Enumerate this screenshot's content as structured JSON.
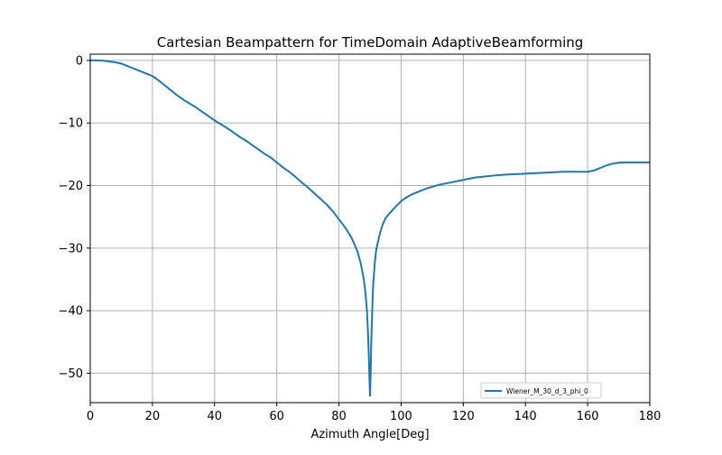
{
  "chart_data": {
    "type": "line",
    "title": "Cartesian Beampattern for TimeDomain AdaptiveBeamforming",
    "xlabel": "Azimuth Angle[Deg]",
    "ylabel": "",
    "xlim": [
      0,
      180
    ],
    "ylim": [
      -54.7,
      1.0
    ],
    "xticks": [
      0,
      20,
      40,
      60,
      80,
      100,
      120,
      140,
      160,
      180
    ],
    "yticks": [
      0,
      -10,
      -20,
      -30,
      -40,
      -50
    ],
    "grid": true,
    "legend_position": "lower-right",
    "colors": {
      "series": "#1f77b4",
      "grid": "#b0b0b0"
    },
    "series": [
      {
        "name": "Wiener_M_30_d_3_phi_0",
        "x": [
          0,
          2,
          4,
          6,
          8,
          10,
          12,
          14,
          16,
          18,
          20,
          22,
          24,
          26,
          28,
          30,
          32,
          34,
          36,
          38,
          40,
          42,
          44,
          46,
          48,
          50,
          52,
          54,
          56,
          58,
          60,
          62,
          64,
          66,
          68,
          70,
          72,
          74,
          76,
          78,
          80,
          82,
          84,
          85,
          86,
          87,
          88,
          88.5,
          89,
          89.3,
          89.6,
          89.8,
          90,
          90.2,
          90.4,
          90.7,
          91,
          91.5,
          92,
          93,
          94,
          95,
          96,
          98,
          100,
          102,
          104,
          106,
          108,
          110,
          112,
          114,
          116,
          118,
          120,
          122,
          124,
          126,
          128,
          130,
          132,
          134,
          136,
          138,
          140,
          142,
          144,
          146,
          148,
          150,
          152,
          154,
          156,
          158,
          160,
          162,
          164,
          166,
          168,
          170,
          172,
          174,
          176,
          178,
          180
        ],
        "y": [
          0,
          0,
          -0.05,
          -0.15,
          -0.3,
          -0.5,
          -0.9,
          -1.3,
          -1.7,
          -2.1,
          -2.5,
          -3.2,
          -4.0,
          -4.8,
          -5.6,
          -6.3,
          -6.9,
          -7.5,
          -8.2,
          -8.9,
          -9.6,
          -10.2,
          -10.8,
          -11.5,
          -12.2,
          -12.8,
          -13.5,
          -14.2,
          -14.9,
          -15.5,
          -16.3,
          -17.1,
          -17.8,
          -18.6,
          -19.5,
          -20.3,
          -21.2,
          -22.1,
          -23.0,
          -24.1,
          -25.4,
          -26.7,
          -28.3,
          -29.4,
          -30.6,
          -32.4,
          -35.0,
          -37.0,
          -40.0,
          -43.0,
          -47.0,
          -50.5,
          -53.6,
          -50.0,
          -45.0,
          -40.0,
          -36.0,
          -32.5,
          -30.2,
          -28.0,
          -26.3,
          -25.2,
          -24.6,
          -23.5,
          -22.5,
          -21.8,
          -21.3,
          -20.9,
          -20.5,
          -20.2,
          -19.9,
          -19.7,
          -19.5,
          -19.3,
          -19.1,
          -18.9,
          -18.7,
          -18.6,
          -18.5,
          -18.4,
          -18.3,
          -18.25,
          -18.2,
          -18.15,
          -18.1,
          -18.05,
          -18.0,
          -17.95,
          -17.9,
          -17.85,
          -17.8,
          -17.8,
          -17.8,
          -17.8,
          -17.8,
          -17.6,
          -17.2,
          -16.8,
          -16.5,
          -16.35,
          -16.3,
          -16.3,
          -16.3,
          -16.3,
          -16.3
        ]
      }
    ]
  }
}
